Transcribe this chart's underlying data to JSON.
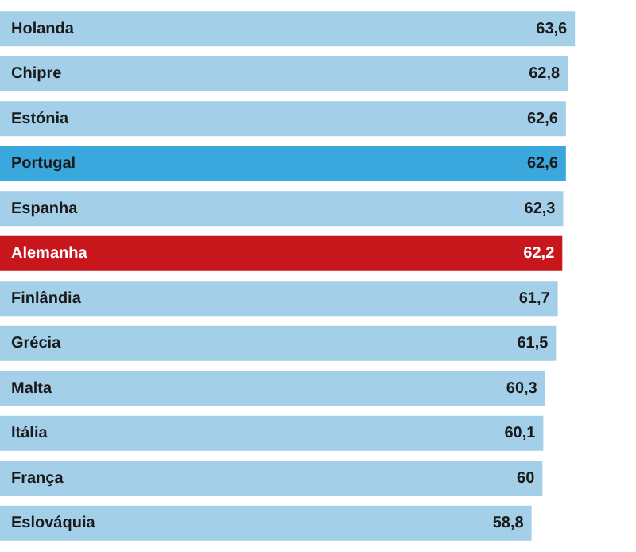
{
  "chart_data": {
    "type": "bar",
    "orientation": "horizontal",
    "categories": [
      "Holanda",
      "Chipre",
      "Estónia",
      "Portugal",
      "Espanha",
      "Alemanha",
      "Finlândia",
      "Grécia",
      "Malta",
      "Itália",
      "França",
      "Eslováquia"
    ],
    "values": [
      63.6,
      62.8,
      62.6,
      62.6,
      62.3,
      62.2,
      61.7,
      61.5,
      60.3,
      60.1,
      60,
      58.8
    ],
    "value_labels": [
      "63,6",
      "62,8",
      "62,6",
      "62,6",
      "62,3",
      "62,2",
      "61,7",
      "61,5",
      "60,3",
      "60,1",
      "60",
      "58,8"
    ],
    "colors": [
      "#a3cfe9",
      "#a3cfe9",
      "#a3cfe9",
      "#3aa8dd",
      "#a3cfe9",
      "#c8161d",
      "#a3cfe9",
      "#a3cfe9",
      "#a3cfe9",
      "#a3cfe9",
      "#a3cfe9",
      "#a3cfe9"
    ]
  }
}
